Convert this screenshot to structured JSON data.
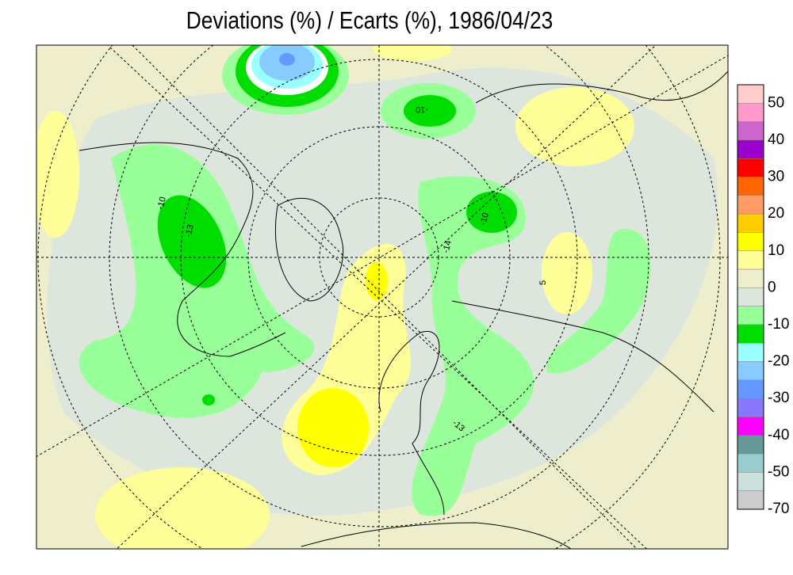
{
  "title": "Deviations (%) / Ecarts (%), 1986/04/23",
  "legend": {
    "labels": [
      50,
      40,
      30,
      20,
      10,
      0,
      -10,
      -20,
      -30,
      -40,
      -50,
      -70
    ],
    "colors": [
      "#ffcccc",
      "#ff99cc",
      "#cc66cc",
      "#9900cc",
      "#ff0000",
      "#ff6600",
      "#ff9966",
      "#ffcc00",
      "#ffff00",
      "#ffff99",
      "#eeeecc",
      "#dde6dd",
      "#99ff99",
      "#00dd00",
      "#99ffff",
      "#88ccff",
      "#6699ff",
      "#8877ff",
      "#ff00ff",
      "#669999",
      "#99cccc",
      "#cce0dd",
      "#cccccc"
    ]
  },
  "contour_labels": [
    "-10",
    "-13",
    "-10",
    "-10",
    "-14",
    "5",
    "-13"
  ]
}
